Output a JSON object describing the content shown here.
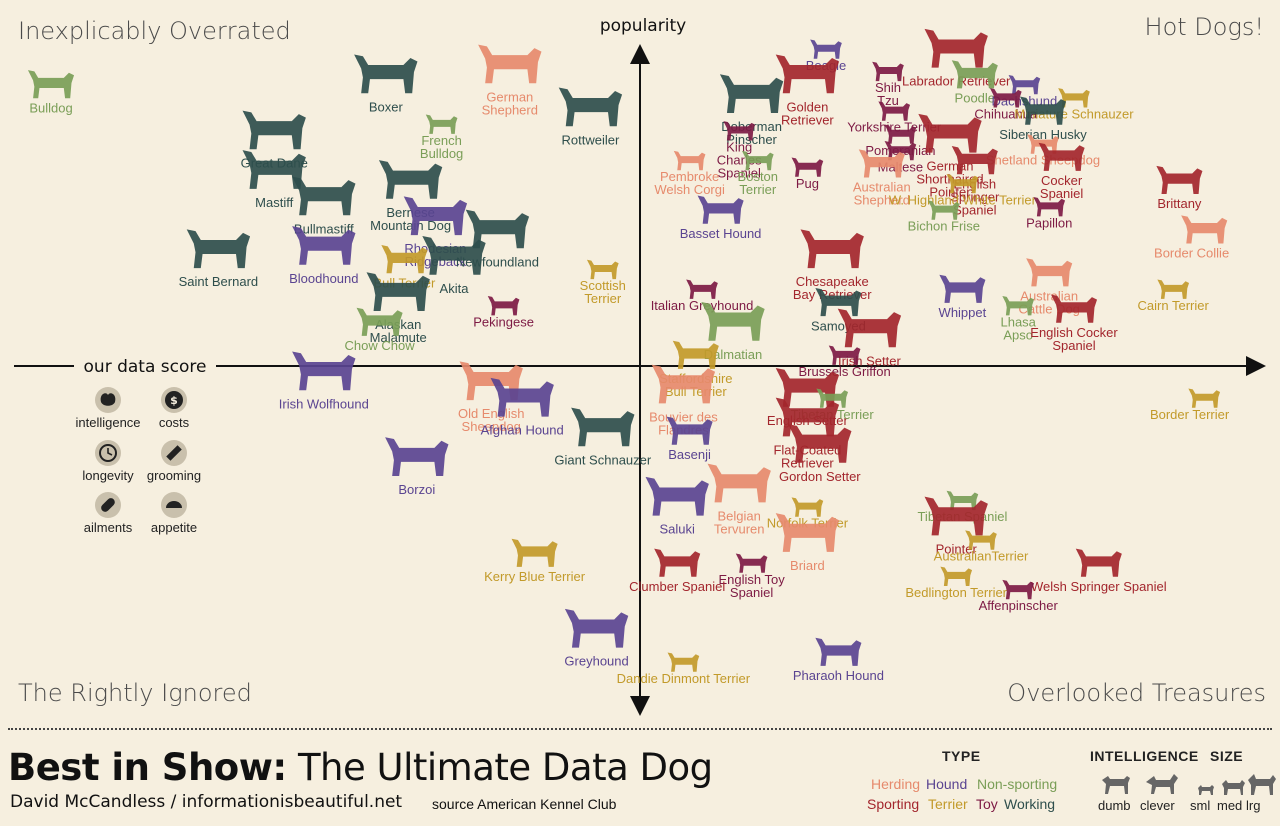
{
  "colors": {
    "Herding": "#e68a6c",
    "Hound": "#5a4491",
    "Non-sporting": "#7a9e57",
    "Sporting": "#a3262d",
    "Terrier": "#c29a2a",
    "Toy": "#7d1a44",
    "Working": "#2e4e4c",
    "background": "#f6efdf",
    "axis": "#111111"
  },
  "quadrants": {
    "top_left": "Inexplicably Overrated",
    "top_right": "Hot Dogs!",
    "bottom_left": "The Rightly Ignored",
    "bottom_right": "Overlooked Treasures"
  },
  "axes": {
    "y_label": "popularity",
    "x_label": "our data score"
  },
  "score_legend": [
    {
      "label": "intelligence",
      "icon": "brain-icon"
    },
    {
      "label": "costs",
      "icon": "dollar-icon"
    },
    {
      "label": "longevity",
      "icon": "clock-icon"
    },
    {
      "label": "grooming",
      "icon": "comb-icon"
    },
    {
      "label": "ailments",
      "icon": "pill-icon"
    },
    {
      "label": "appetite",
      "icon": "bowl-icon"
    }
  ],
  "footer": {
    "title_bold": "Best in Show:",
    "title_light": " The Ultimate Data Dog",
    "byline": "David McCandless  / informationisbeautiful.net",
    "source": "source American Kennel Club",
    "type_heading": "TYPE",
    "intelligence_heading": "INTELLIGENCE",
    "size_heading": "SIZE",
    "intelligence_items": [
      "dumb",
      "clever"
    ],
    "size_items": [
      "sml",
      "med",
      "lrg"
    ],
    "type_items": [
      "Herding",
      "Hound",
      "Non-sporting",
      "Sporting",
      "Terrier",
      "Toy",
      "Working"
    ]
  },
  "chart_data": {
    "type": "scatter",
    "x_label": "our data score",
    "y_label": "popularity",
    "xlim": [
      -1,
      1
    ],
    "ylim": [
      -1,
      1
    ],
    "points": [
      {
        "name": "Bulldog",
        "lines": [
          "Bulldog"
        ],
        "type": "Non-sporting",
        "size": "med",
        "x": -0.95,
        "y": 0.85
      },
      {
        "name": "Boxer",
        "lines": [
          "Boxer"
        ],
        "type": "Working",
        "size": "lrg",
        "x": -0.41,
        "y": 0.88
      },
      {
        "name": "German Shepherd",
        "lines": [
          "German",
          "Shepherd"
        ],
        "type": "Herding",
        "size": "lrg",
        "x": -0.21,
        "y": 0.91
      },
      {
        "name": "Great Dane",
        "lines": [
          "Great Dane"
        ],
        "type": "Working",
        "size": "lrg",
        "x": -0.59,
        "y": 0.71
      },
      {
        "name": "French Bulldog",
        "lines": [
          "French",
          "Bulldog"
        ],
        "type": "Non-sporting",
        "size": "sml",
        "x": -0.32,
        "y": 0.73
      },
      {
        "name": "Rottweiler",
        "lines": [
          "Rottweiler"
        ],
        "type": "Working",
        "size": "lrg",
        "x": -0.08,
        "y": 0.78
      },
      {
        "name": "Mastiff",
        "lines": [
          "Mastiff"
        ],
        "type": "Working",
        "size": "lrg",
        "x": -0.59,
        "y": 0.59
      },
      {
        "name": "Bullmastiff",
        "lines": [
          "Bullmastiff"
        ],
        "type": "Working",
        "size": "lrg",
        "x": -0.51,
        "y": 0.51
      },
      {
        "name": "Bernese Mountain Dog",
        "lines": [
          "Bernese",
          "Mountain Dog"
        ],
        "type": "Working",
        "size": "lrg",
        "x": -0.37,
        "y": 0.56
      },
      {
        "name": "Rhodesian Ridgeback",
        "lines": [
          "Rhodesian",
          "Ridgeback"
        ],
        "type": "Hound",
        "size": "lrg",
        "x": -0.33,
        "y": 0.45
      },
      {
        "name": "Newfoundland",
        "lines": [
          "Newfoundland"
        ],
        "type": "Working",
        "size": "lrg",
        "x": -0.23,
        "y": 0.41
      },
      {
        "name": "Saint Bernard",
        "lines": [
          "Saint Bernard"
        ],
        "type": "Working",
        "size": "lrg",
        "x": -0.68,
        "y": 0.35
      },
      {
        "name": "Bloodhound",
        "lines": [
          "Bloodhound"
        ],
        "type": "Hound",
        "size": "lrg",
        "x": -0.51,
        "y": 0.36
      },
      {
        "name": "Bull Terrier",
        "lines": [
          "Bull Terrier"
        ],
        "type": "Terrier",
        "size": "med",
        "x": -0.38,
        "y": 0.32
      },
      {
        "name": "Akita",
        "lines": [
          "Akita"
        ],
        "type": "Working",
        "size": "lrg",
        "x": -0.3,
        "y": 0.33
      },
      {
        "name": "Scottish Terrier",
        "lines": [
          "Scottish",
          "Terrier"
        ],
        "type": "Terrier",
        "size": "sml",
        "x": -0.06,
        "y": 0.29
      },
      {
        "name": "Alaskan Malamute",
        "lines": [
          "Alaskan",
          "Malamute"
        ],
        "type": "Working",
        "size": "lrg",
        "x": -0.39,
        "y": 0.22
      },
      {
        "name": "Pekingese",
        "lines": [
          "Pekingese"
        ],
        "type": "Toy",
        "size": "sml",
        "x": -0.22,
        "y": 0.18
      },
      {
        "name": "Chow Chow",
        "lines": [
          "Chow Chow"
        ],
        "type": "Non-sporting",
        "size": "med",
        "x": -0.42,
        "y": 0.13
      },
      {
        "name": "Irish Wolfhound",
        "lines": [
          "Irish Wolfhound"
        ],
        "type": "Hound",
        "size": "lrg",
        "x": -0.51,
        "y": -0.02
      },
      {
        "name": "Old English Sheepdog",
        "lines": [
          "Old English",
          "Sheepdog"
        ],
        "type": "Herding",
        "size": "lrg",
        "x": -0.24,
        "y": -0.05
      },
      {
        "name": "Afghan Hound",
        "lines": [
          "Afghan Hound"
        ],
        "type": "Hound",
        "size": "lrg",
        "x": -0.19,
        "y": -0.1
      },
      {
        "name": "Giant Schnauzer",
        "lines": [
          "Giant Schnauzer"
        ],
        "type": "Working",
        "size": "lrg",
        "x": -0.06,
        "y": -0.19
      },
      {
        "name": "Borzoi",
        "lines": [
          "Borzoi"
        ],
        "type": "Hound",
        "size": "lrg",
        "x": -0.36,
        "y": -0.28
      },
      {
        "name": "Kerry Blue Terrier",
        "lines": [
          "Kerry Blue Terrier"
        ],
        "type": "Terrier",
        "size": "med",
        "x": -0.17,
        "y": -0.57
      },
      {
        "name": "Greyhound",
        "lines": [
          "Greyhound"
        ],
        "type": "Hound",
        "size": "lrg",
        "x": -0.07,
        "y": -0.8
      },
      {
        "name": "Beagle",
        "lines": [
          "Beagle"
        ],
        "type": "Hound",
        "size": "sml",
        "x": 0.3,
        "y": 0.96
      },
      {
        "name": "Labrador Retriever",
        "lines": [
          "Labrador Retriever"
        ],
        "type": "Sporting",
        "size": "lrg",
        "x": 0.51,
        "y": 0.96
      },
      {
        "name": "Golden Retriever",
        "lines": [
          "Golden",
          "Retriever"
        ],
        "type": "Sporting",
        "size": "lrg",
        "x": 0.27,
        "y": 0.88
      },
      {
        "name": "Shih Tzu",
        "lines": [
          "Shih",
          "Tzu"
        ],
        "type": "Toy",
        "size": "sml",
        "x": 0.4,
        "y": 0.89
      },
      {
        "name": "Poodle",
        "lines": [
          "Poodle"
        ],
        "type": "Non-sporting",
        "size": "med",
        "x": 0.54,
        "y": 0.88
      },
      {
        "name": "Dachshund",
        "lines": [
          "Dachshund"
        ],
        "type": "Hound",
        "size": "sml",
        "x": 0.62,
        "y": 0.85
      },
      {
        "name": "Doberman Pinscher",
        "lines": [
          "Doberman",
          "Pinscher"
        ],
        "type": "Working",
        "size": "lrg",
        "x": 0.18,
        "y": 0.82
      },
      {
        "name": "Chihuahua",
        "lines": [
          "Chihuahua"
        ],
        "type": "Toy",
        "size": "sml",
        "x": 0.59,
        "y": 0.81
      },
      {
        "name": "Miniature Schnauzer",
        "lines": [
          "Miniature Schnauzer"
        ],
        "type": "Terrier",
        "size": "sml",
        "x": 0.7,
        "y": 0.81
      },
      {
        "name": "Siberian Husky",
        "lines": [
          "Siberian Husky"
        ],
        "type": "Working",
        "size": "med",
        "x": 0.65,
        "y": 0.77
      },
      {
        "name": "Yorkshire Terrier",
        "lines": [
          "Yorkshire Terrier"
        ],
        "type": "Toy",
        "size": "sml",
        "x": 0.41,
        "y": 0.77
      },
      {
        "name": "King Charles Spaniel",
        "lines": [
          "King",
          "Charles",
          "Spaniel"
        ],
        "type": "Toy",
        "size": "sml",
        "x": 0.16,
        "y": 0.71
      },
      {
        "name": "Pomeranian",
        "lines": [
          "Pomeranian"
        ],
        "type": "Toy",
        "size": "sml",
        "x": 0.42,
        "y": 0.7
      },
      {
        "name": "German Shorthaired Pointer",
        "lines": [
          "German",
          "Shorthaired",
          "Pointer"
        ],
        "type": "Sporting",
        "size": "lrg",
        "x": 0.5,
        "y": 0.7
      },
      {
        "name": "Shetland Sheepdog",
        "lines": [
          "Shetland Sheepdog"
        ],
        "type": "Herding",
        "size": "sml",
        "x": 0.65,
        "y": 0.67
      },
      {
        "name": "Maltese",
        "lines": [
          "Maltese"
        ],
        "type": "Toy",
        "size": "sml",
        "x": 0.42,
        "y": 0.65
      },
      {
        "name": "Boston Terrier",
        "lines": [
          "Boston",
          "Terrier"
        ],
        "type": "Non-sporting",
        "size": "sml",
        "x": 0.19,
        "y": 0.62
      },
      {
        "name": "Pug",
        "lines": [
          "Pug"
        ],
        "type": "Toy",
        "size": "sml",
        "x": 0.27,
        "y": 0.6
      },
      {
        "name": "Australian Shepherd",
        "lines": [
          "Australian",
          "Shepherd"
        ],
        "type": "Herding",
        "size": "med",
        "x": 0.39,
        "y": 0.61
      },
      {
        "name": "English Springer Spaniel",
        "lines": [
          "English",
          "Springer",
          "Spaniel"
        ],
        "type": "Sporting",
        "size": "med",
        "x": 0.54,
        "y": 0.62
      },
      {
        "name": "Cocker Spaniel",
        "lines": [
          "Cocker",
          "Spaniel"
        ],
        "type": "Sporting",
        "size": "med",
        "x": 0.68,
        "y": 0.63
      },
      {
        "name": "Pembroke Welsh Corgi",
        "lines": [
          "Pembroke",
          "Welsh Corgi"
        ],
        "type": "Herding",
        "size": "sml",
        "x": 0.08,
        "y": 0.62
      },
      {
        "name": "W. Highland White Terrier",
        "lines": [
          "W. Highland White Terrier"
        ],
        "type": "Terrier",
        "size": "sml",
        "x": 0.52,
        "y": 0.55
      },
      {
        "name": "Brittany",
        "lines": [
          "Brittany"
        ],
        "type": "Sporting",
        "size": "med",
        "x": 0.87,
        "y": 0.56
      },
      {
        "name": "Papillon",
        "lines": [
          "Papillon"
        ],
        "type": "Toy",
        "size": "sml",
        "x": 0.66,
        "y": 0.48
      },
      {
        "name": "Basset Hound",
        "lines": [
          "Basset Hound"
        ],
        "type": "Hound",
        "size": "med",
        "x": 0.13,
        "y": 0.47
      },
      {
        "name": "Bichon Frise",
        "lines": [
          "Bichon Frise"
        ],
        "type": "Non-sporting",
        "size": "sml",
        "x": 0.49,
        "y": 0.47
      },
      {
        "name": "Border Collie",
        "lines": [
          "Border Collie"
        ],
        "type": "Herding",
        "size": "med",
        "x": 0.91,
        "y": 0.41
      },
      {
        "name": "Chesapeake Bay Retriever",
        "lines": [
          "Chesapeake",
          "Bay Retriever"
        ],
        "type": "Sporting",
        "size": "lrg",
        "x": 0.31,
        "y": 0.35
      },
      {
        "name": "Australian Cattle Dog",
        "lines": [
          "Australian",
          "Cattle Dog"
        ],
        "type": "Herding",
        "size": "med",
        "x": 0.66,
        "y": 0.28
      },
      {
        "name": "Italian Greyhound",
        "lines": [
          "Italian Greyhound"
        ],
        "type": "Toy",
        "size": "sml",
        "x": 0.1,
        "y": 0.23
      },
      {
        "name": "Samoyed",
        "lines": [
          "Samoyed"
        ],
        "type": "Working",
        "size": "med",
        "x": 0.32,
        "y": 0.19
      },
      {
        "name": "Whippet",
        "lines": [
          "Whippet"
        ],
        "type": "Hound",
        "size": "med",
        "x": 0.52,
        "y": 0.23
      },
      {
        "name": "Cairn Terrier",
        "lines": [
          "Cairn Terrier"
        ],
        "type": "Terrier",
        "size": "sml",
        "x": 0.86,
        "y": 0.23
      },
      {
        "name": "Dalmatian",
        "lines": [
          "Dalmatian"
        ],
        "type": "Non-sporting",
        "size": "lrg",
        "x": 0.15,
        "y": 0.13
      },
      {
        "name": "Lhasa Apso",
        "lines": [
          "Lhasa",
          "Apso"
        ],
        "type": "Non-sporting",
        "size": "sml",
        "x": 0.61,
        "y": 0.18
      },
      {
        "name": "English Cocker Spaniel",
        "lines": [
          "English Cocker",
          "Spaniel"
        ],
        "type": "Sporting",
        "size": "med",
        "x": 0.7,
        "y": 0.17
      },
      {
        "name": "Irish Setter",
        "lines": [
          "Irish Setter"
        ],
        "type": "Sporting",
        "size": "lrg",
        "x": 0.37,
        "y": 0.11
      },
      {
        "name": "Staffordshire Bull Terrier",
        "lines": [
          "Staffordshire",
          "Bull Terrier"
        ],
        "type": "Terrier",
        "size": "med",
        "x": 0.09,
        "y": 0.03
      },
      {
        "name": "Brussels Griffon",
        "lines": [
          "Brussels Griffon"
        ],
        "type": "Toy",
        "size": "sml",
        "x": 0.33,
        "y": 0.03
      },
      {
        "name": "Bouvier des Flandres",
        "lines": [
          "Bouvier des",
          "Flandres"
        ],
        "type": "Herding",
        "size": "lrg",
        "x": 0.07,
        "y": -0.06
      },
      {
        "name": "English Setter",
        "lines": [
          "English Setter"
        ],
        "type": "Sporting",
        "size": "lrg",
        "x": 0.27,
        "y": -0.07
      },
      {
        "name": "Tibetan Terrier",
        "lines": [
          "Tibetan Terrier"
        ],
        "type": "Non-sporting",
        "size": "sml",
        "x": 0.31,
        "y": -0.1
      },
      {
        "name": "Border Terrier",
        "lines": [
          "Border Terrier"
        ],
        "type": "Terrier",
        "size": "sml",
        "x": 0.91,
        "y": -0.1
      },
      {
        "name": "Flat-Coated Retriever",
        "lines": [
          "Flat-Coated",
          "Retriever"
        ],
        "type": "Sporting",
        "size": "lrg",
        "x": 0.27,
        "y": -0.16
      },
      {
        "name": "Basenji",
        "lines": [
          "Basenji"
        ],
        "type": "Hound",
        "size": "med",
        "x": 0.08,
        "y": -0.2
      },
      {
        "name": "Gordon Setter",
        "lines": [
          "Gordon Setter"
        ],
        "type": "Sporting",
        "size": "lrg",
        "x": 0.29,
        "y": -0.24
      },
      {
        "name": "Saluki",
        "lines": [
          "Saluki"
        ],
        "type": "Hound",
        "size": "lrg",
        "x": 0.06,
        "y": -0.4
      },
      {
        "name": "Belgian Tervuren",
        "lines": [
          "Belgian",
          "Tervuren"
        ],
        "type": "Herding",
        "size": "lrg",
        "x": 0.16,
        "y": -0.36
      },
      {
        "name": "Norfolk Terrier",
        "lines": [
          "Norfolk Terrier"
        ],
        "type": "Terrier",
        "size": "sml",
        "x": 0.27,
        "y": -0.43
      },
      {
        "name": "Briard",
        "lines": [
          "Briard"
        ],
        "type": "Herding",
        "size": "lrg",
        "x": 0.27,
        "y": -0.51
      },
      {
        "name": "Tibetan Spaniel",
        "lines": [
          "Tibetan Spaniel"
        ],
        "type": "Non-sporting",
        "size": "sml",
        "x": 0.52,
        "y": -0.41
      },
      {
        "name": "Pointer",
        "lines": [
          "Pointer"
        ],
        "type": "Sporting",
        "size": "lrg",
        "x": 0.51,
        "y": -0.46
      },
      {
        "name": "Australian Terrier",
        "lines": [
          "AustralianTerrier"
        ],
        "type": "Terrier",
        "size": "sml",
        "x": 0.55,
        "y": -0.53
      },
      {
        "name": "English Toy Spaniel",
        "lines": [
          "English Toy",
          "Spaniel"
        ],
        "type": "Toy",
        "size": "sml",
        "x": 0.18,
        "y": -0.6
      },
      {
        "name": "Clumber Spaniel",
        "lines": [
          "Clumber Spaniel"
        ],
        "type": "Sporting",
        "size": "med",
        "x": 0.06,
        "y": -0.6
      },
      {
        "name": "Welsh Springer Spaniel",
        "lines": [
          "Welsh Springer Spaniel"
        ],
        "type": "Sporting",
        "size": "med",
        "x": 0.74,
        "y": -0.6
      },
      {
        "name": "Bedlington Terrier",
        "lines": [
          "Bedlington Terrier"
        ],
        "type": "Terrier",
        "size": "sml",
        "x": 0.51,
        "y": -0.64
      },
      {
        "name": "Affenpinscher",
        "lines": [
          "Affenpinscher"
        ],
        "type": "Toy",
        "size": "sml",
        "x": 0.61,
        "y": -0.68
      },
      {
        "name": "Dandie Dinmont Terrier",
        "lines": [
          "Dandie Dinmont Terrier"
        ],
        "type": "Terrier",
        "size": "sml",
        "x": 0.07,
        "y": -0.9
      },
      {
        "name": "Pharaoh Hound",
        "lines": [
          "Pharaoh Hound"
        ],
        "type": "Hound",
        "size": "med",
        "x": 0.32,
        "y": -0.87
      }
    ]
  }
}
